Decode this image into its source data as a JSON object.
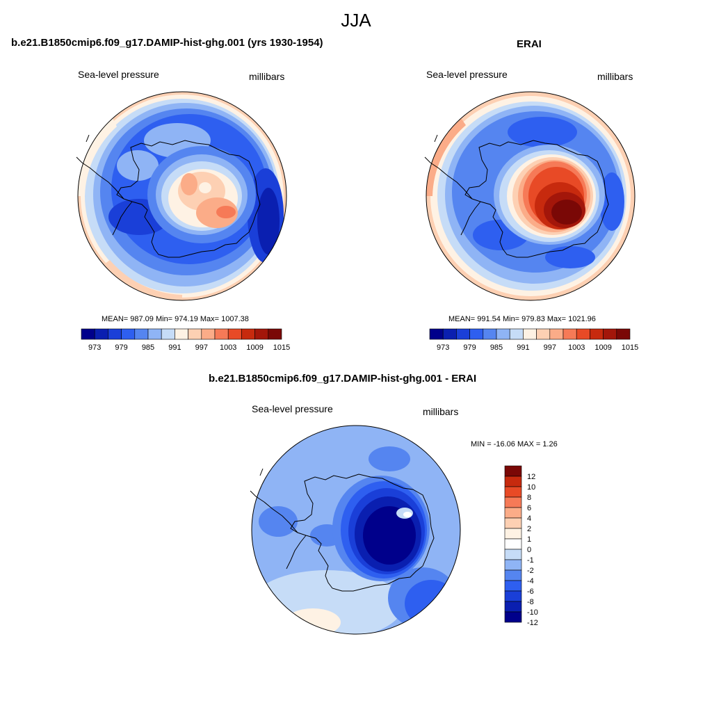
{
  "figure": {
    "title": "JJA"
  },
  "panels": [
    {
      "title": "b.e21.B1850cmip6.f09_g17.DAMIP-hist-ghg.001 (yrs 1930-1954)",
      "left_label": "Sea-level pressure",
      "right_label": "millibars",
      "stats": "MEAN= 987.09  Min= 974.19  Max= 1007.38"
    },
    {
      "title": "ERAI",
      "left_label": "Sea-level pressure",
      "right_label": "millibars",
      "stats": "MEAN= 991.54  Min= 979.83  Max= 1021.96"
    },
    {
      "title": "b.e21.B1850cmip6.f09_g17.DAMIP-hist-ghg.001 - ERAI",
      "left_label": "Sea-level pressure",
      "right_label": "millibars",
      "stats": "MIN = -16.06 MAX =   1.26"
    }
  ],
  "colors": {
    "slp_scale": [
      "#00008b",
      "#0a1fb0",
      "#1a3fd8",
      "#2e5ff0",
      "#5585f0",
      "#8fb4f5",
      "#c6dcf7",
      "#fef2e4",
      "#fdd0b3",
      "#fbac88",
      "#f67a57",
      "#e84a26",
      "#c72a0e",
      "#a3160a",
      "#7a0806"
    ],
    "diff_scale": [
      "#00008b",
      "#0a1fb0",
      "#1a3fd8",
      "#2e5ff0",
      "#5585f0",
      "#8fb4f5",
      "#c6dcf7",
      "#ffffff",
      "#fef2e4",
      "#fdd0b3",
      "#fbac88",
      "#f67a57",
      "#e84a26",
      "#c72a0e",
      "#7a0806"
    ],
    "coast": "#000000"
  },
  "chart_data": [
    {
      "type": "heatmap",
      "title": "b.e21.B1850cmip6.f09_g17.DAMIP-hist-ghg.001 (yrs 1930-1954)",
      "variable": "Sea-level pressure",
      "units": "millibars",
      "colorbar_ticks": [
        973,
        979,
        985,
        991,
        997,
        1003,
        1009,
        1015
      ],
      "mean": 987.09,
      "min": 974.19,
      "max": 1007.38
    },
    {
      "type": "heatmap",
      "title": "ERAI",
      "variable": "Sea-level pressure",
      "units": "millibars",
      "colorbar_ticks": [
        973,
        979,
        985,
        991,
        997,
        1003,
        1009,
        1015
      ],
      "mean": 991.54,
      "min": 979.83,
      "max": 1021.96
    },
    {
      "type": "heatmap",
      "title": "b.e21.B1850cmip6.f09_g17.DAMIP-hist-ghg.001 - ERAI",
      "variable": "Sea-level pressure",
      "units": "millibars",
      "colorbar_ticks": [
        12,
        10,
        8,
        6,
        4,
        2,
        1,
        0,
        -1,
        -2,
        -4,
        -6,
        -8,
        -10,
        -12
      ],
      "min": -16.06,
      "max": 1.26
    }
  ]
}
